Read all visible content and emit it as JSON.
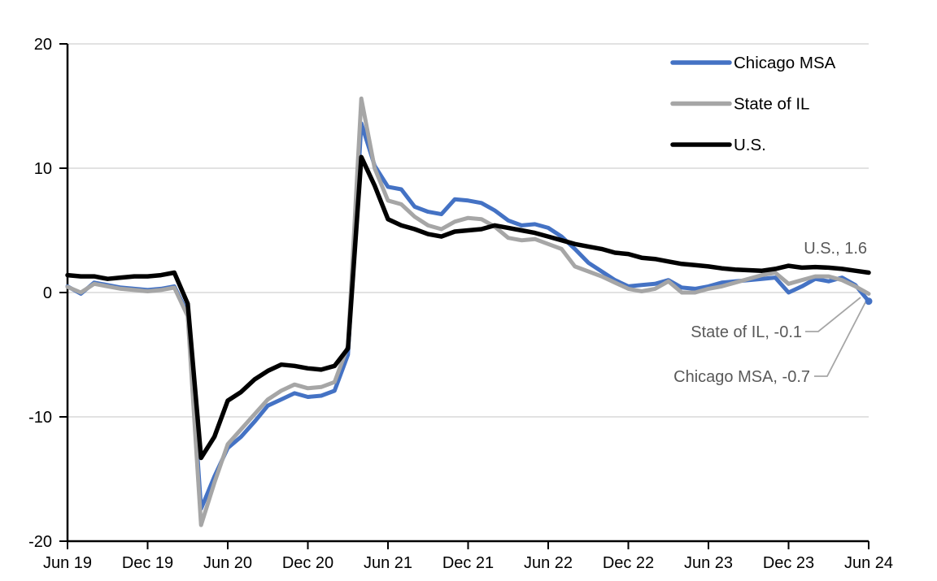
{
  "chart_data": {
    "type": "line",
    "title": "",
    "xlabel": "",
    "ylabel": "",
    "x_unit": "month",
    "x_range": [
      "Jun 2019",
      "Jun 2024"
    ],
    "x_tick_labels": [
      "Jun 19",
      "Dec 19",
      "Jun 20",
      "Dec 20",
      "Jun 21",
      "Dec 21",
      "Jun 22",
      "Dec 22",
      "Jun 23",
      "Dec 23",
      "Jun 24"
    ],
    "y_tick_labels": [
      "20",
      "10",
      "0",
      "-10",
      "-20"
    ],
    "y_ticks": [
      20,
      10,
      0,
      -10,
      -20
    ],
    "ylim": [
      -20,
      20
    ],
    "grid_values": [
      20,
      10,
      0,
      -10
    ],
    "grid_on": true,
    "legend_position": "top-right-inside",
    "series": [
      {
        "name": "Chicago MSA",
        "color": "#4472C4",
        "stroke_width": 5,
        "end_marker": true,
        "values": [
          0.5,
          -0.1,
          0.8,
          0.6,
          0.4,
          0.3,
          0.2,
          0.3,
          0.5,
          -1.7,
          -17.4,
          -14.8,
          -12.5,
          -11.6,
          -10.4,
          -9.1,
          -8.6,
          -8.1,
          -8.4,
          -8.3,
          -7.9,
          -5.0,
          13.6,
          10.2,
          8.5,
          8.3,
          6.9,
          6.5,
          6.3,
          7.5,
          7.4,
          7.2,
          6.6,
          5.8,
          5.4,
          5.5,
          5.2,
          4.5,
          3.5,
          2.4,
          1.7,
          1.0,
          0.5,
          0.6,
          0.7,
          1.0,
          0.4,
          0.3,
          0.5,
          0.8,
          0.9,
          1.0,
          1.1,
          1.2,
          0.0,
          0.5,
          1.1,
          0.9,
          1.2,
          0.6,
          -0.7
        ]
      },
      {
        "name": "State of IL",
        "color": "#A6A6A6",
        "stroke_width": 5,
        "end_marker": false,
        "values": [
          0.45,
          0.0,
          0.7,
          0.5,
          0.3,
          0.2,
          0.1,
          0.2,
          0.4,
          -1.9,
          -18.7,
          -15.3,
          -12.2,
          -11.0,
          -9.8,
          -8.6,
          -7.9,
          -7.4,
          -7.7,
          -7.6,
          -7.2,
          -4.3,
          15.6,
          10.0,
          7.4,
          7.1,
          6.1,
          5.4,
          5.1,
          5.7,
          6.0,
          5.9,
          5.3,
          4.4,
          4.2,
          4.3,
          3.9,
          3.5,
          2.1,
          1.7,
          1.3,
          0.8,
          0.3,
          0.1,
          0.3,
          0.9,
          0.0,
          0.0,
          0.3,
          0.5,
          0.8,
          1.1,
          1.4,
          1.6,
          0.7,
          1.0,
          1.3,
          1.3,
          1.0,
          0.5,
          -0.1
        ]
      },
      {
        "name": "U.S.",
        "color": "#000000",
        "stroke_width": 5.5,
        "end_marker": false,
        "values": [
          1.4,
          1.3,
          1.3,
          1.1,
          1.2,
          1.3,
          1.3,
          1.4,
          1.6,
          -0.9,
          -13.3,
          -11.6,
          -8.7,
          -8.0,
          -7.0,
          -6.3,
          -5.8,
          -5.9,
          -6.1,
          -6.2,
          -5.9,
          -4.5,
          10.9,
          8.6,
          5.9,
          5.4,
          5.1,
          4.7,
          4.5,
          4.9,
          5.0,
          5.1,
          5.4,
          5.2,
          5.0,
          4.8,
          4.5,
          4.2,
          3.9,
          3.7,
          3.5,
          3.2,
          3.1,
          2.8,
          2.7,
          2.5,
          2.3,
          2.2,
          2.1,
          1.95,
          1.85,
          1.8,
          1.75,
          1.9,
          2.15,
          2.0,
          2.05,
          2.0,
          1.9,
          1.75,
          1.6
        ]
      }
    ],
    "legend": [
      {
        "label": "Chicago MSA",
        "color": "#4472C4"
      },
      {
        "label": "State of IL",
        "color": "#A6A6A6"
      },
      {
        "label": "U.S.",
        "color": "#000000"
      }
    ],
    "annotations": [
      {
        "id": "us",
        "text": "U.S., 1.6",
        "value": 1.6
      },
      {
        "id": "il",
        "text": "State of IL, -0.1",
        "value": -0.1
      },
      {
        "id": "chicago",
        "text": "Chicago MSA, -0.7",
        "value": -0.7
      }
    ],
    "colors": {
      "gridline": "#D9D9D9",
      "axis": "#000000",
      "tick_label": "#000000",
      "legend_label": "#000000",
      "annotation_text": "#595959",
      "leader_line": "#A6A6A6",
      "background": "#FFFFFF"
    }
  }
}
